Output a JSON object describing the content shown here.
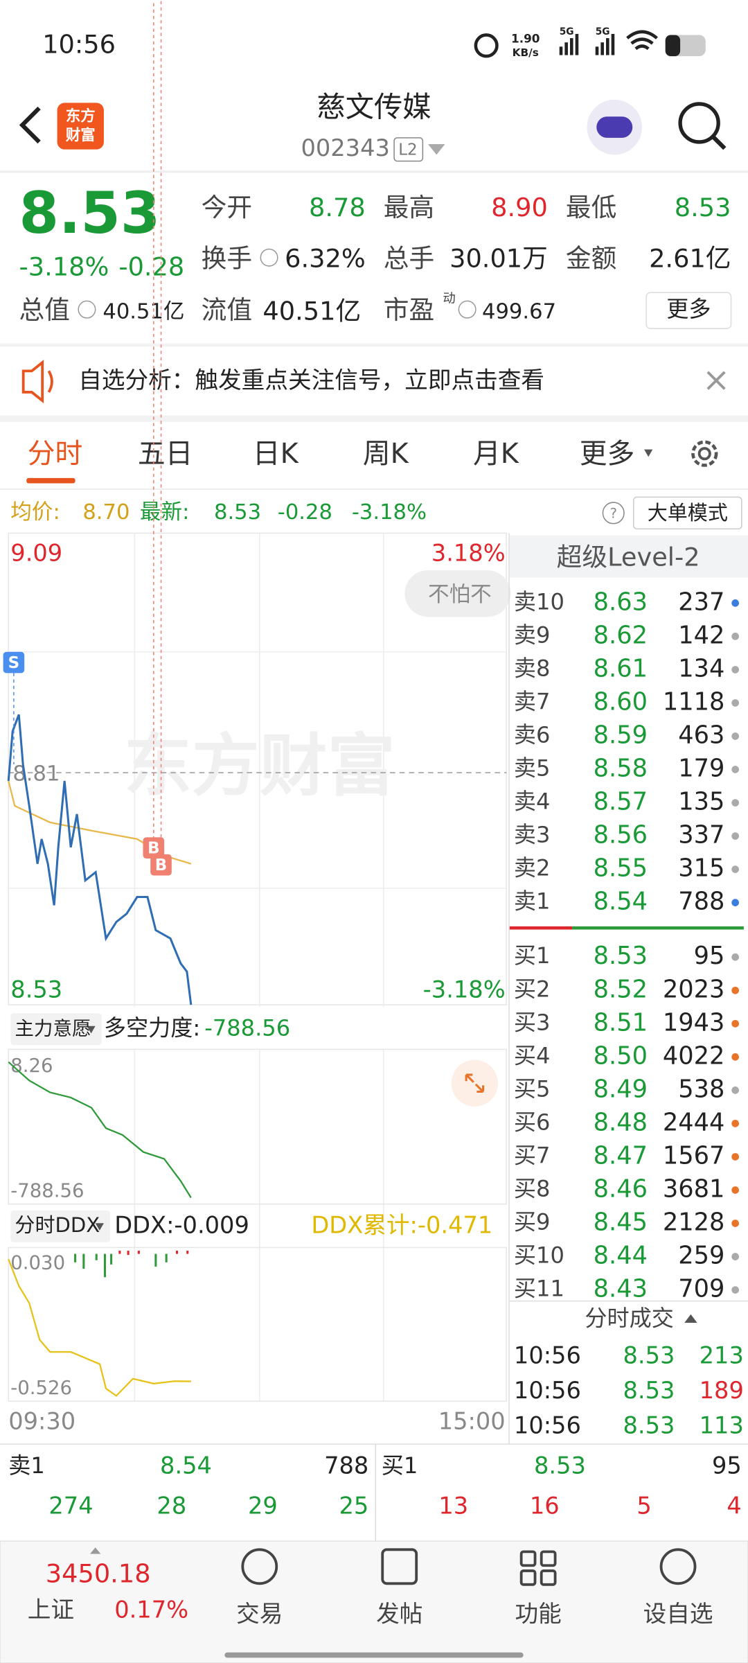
{
  "status": {
    "time": "10:56",
    "speed": "1.90",
    "speed_unit": "KB/s",
    "net1": "5G",
    "net2": "5G"
  },
  "header": {
    "logo_line1": "东方",
    "logo_line2": "财富",
    "name": "慈文传媒",
    "code": "002343",
    "badge": "L2"
  },
  "quote": {
    "price": "8.53",
    "pct": "-3.18%",
    "change": "-0.28",
    "fields": [
      {
        "label": "今开",
        "value": "8.78",
        "color": "#1a9a36"
      },
      {
        "label": "最高",
        "value": "8.90",
        "color": "#e0262d"
      },
      {
        "label": "最低",
        "value": "8.53",
        "color": "#1a9a36"
      },
      {
        "label": "换手",
        "value": "6.32%",
        "color": "#222222"
      },
      {
        "label": "总手",
        "value": "30.01万",
        "color": "#222222"
      },
      {
        "label": "金额",
        "value": "2.61亿",
        "color": "#222222"
      },
      {
        "label": "总值",
        "value": "40.51亿",
        "color": "#222222"
      },
      {
        "label": "流值",
        "value": "40.51亿",
        "color": "#222222"
      },
      {
        "label": "市盈",
        "sup": "动",
        "value": "499.67",
        "color": "#222222"
      }
    ],
    "more": "更多"
  },
  "banner": {
    "text": "自选分析：触发重点关注信号，立即点击查看"
  },
  "tabs": [
    "分时",
    "五日",
    "日K",
    "周K",
    "月K",
    "更多"
  ],
  "info": {
    "avg_label": "均价:",
    "avg": "8.70",
    "last_label": "最新:",
    "last": "8.53",
    "change": "-0.28",
    "pct": "-3.18%",
    "mode": "大单模式"
  },
  "chart": {
    "ylim": [
      8.53,
      9.09
    ],
    "top_pct": "3.18%",
    "bottom_pct": "-3.18%",
    "prev_close": 8.81,
    "xticks": [
      {
        "value": 0,
        "label": "09:30"
      },
      {
        "value": 240,
        "label": "15:00"
      }
    ],
    "watermark": "东方财富",
    "bubble": "不怕不",
    "markers": [
      "S",
      "B",
      "B"
    ],
    "price": {
      "color": "#2f6db5",
      "x": [
        0,
        2,
        5,
        7,
        10,
        14,
        16,
        19,
        22,
        24,
        27,
        30,
        33,
        37,
        42,
        47,
        52,
        57,
        62,
        67,
        71,
        78,
        83,
        86,
        88
      ],
      "values": [
        8.8,
        8.86,
        8.88,
        8.82,
        8.77,
        8.7,
        8.73,
        8.7,
        8.65,
        8.72,
        8.8,
        8.72,
        8.76,
        8.68,
        8.69,
        8.61,
        8.63,
        8.64,
        8.66,
        8.66,
        8.62,
        8.61,
        8.58,
        8.57,
        8.53
      ]
    },
    "avg": {
      "color": "#e8b84a",
      "x": [
        0,
        3,
        20,
        40,
        62,
        75,
        88
      ],
      "values": [
        8.8,
        8.77,
        8.75,
        8.74,
        8.73,
        8.71,
        8.7
      ]
    }
  },
  "ind1": {
    "selector": "主力意愿",
    "label": "多空力度:",
    "value": "-788.56",
    "yticks": [
      8.26,
      -788.56
    ],
    "color": "#2e9a3a",
    "x": [
      0,
      10,
      20,
      30,
      40,
      47,
      55,
      65,
      75,
      83,
      88
    ],
    "values": [
      8.26,
      -100,
      -170,
      -200,
      -260,
      -380,
      -420,
      -520,
      -560,
      -690,
      -788.56
    ]
  },
  "ind2": {
    "selector": "分时DDX",
    "ddx": "DDX:-0.009",
    "ddx_sum": "DDX累计:-0.471",
    "yticks": [
      {
        "value": 0.03,
        "label": "0.030"
      },
      -0.526
    ],
    "color": "#e6c21a",
    "x": [
      0,
      5,
      10,
      15,
      20,
      30,
      44,
      47,
      52,
      60,
      70,
      80,
      88
    ],
    "values": [
      0.03,
      -0.08,
      -0.15,
      -0.3,
      -0.35,
      -0.35,
      -0.4,
      -0.5,
      -0.53,
      -0.46,
      -0.48,
      -0.47,
      -0.471
    ]
  },
  "book": {
    "title": "超级Level-2",
    "sells": [
      {
        "label": "卖10",
        "price": "8.63",
        "volume": "237",
        "dot": "#3b7ddd"
      },
      {
        "label": "卖9",
        "price": "8.62",
        "volume": "142",
        "dot": "#aaaaaa"
      },
      {
        "label": "卖8",
        "price": "8.61",
        "volume": "134",
        "dot": "#aaaaaa"
      },
      {
        "label": "卖7",
        "price": "8.60",
        "volume": "1118",
        "dot": "#aaaaaa"
      },
      {
        "label": "卖6",
        "price": "8.59",
        "volume": "463",
        "dot": "#aaaaaa"
      },
      {
        "label": "卖5",
        "price": "8.58",
        "volume": "179",
        "dot": "#aaaaaa"
      },
      {
        "label": "卖4",
        "price": "8.57",
        "volume": "135",
        "dot": "#aaaaaa"
      },
      {
        "label": "卖3",
        "price": "8.56",
        "volume": "337",
        "dot": "#aaaaaa"
      },
      {
        "label": "卖2",
        "price": "8.55",
        "volume": "315",
        "dot": "#aaaaaa"
      },
      {
        "label": "卖1",
        "price": "8.54",
        "volume": "788",
        "dot": "#3b7ddd"
      }
    ],
    "buys": [
      {
        "label": "买1",
        "price": "8.53",
        "volume": "95",
        "dot": "#aaaaaa"
      },
      {
        "label": "买2",
        "price": "8.52",
        "volume": "2023",
        "dot": "#e8742a"
      },
      {
        "label": "买3",
        "price": "8.51",
        "volume": "1943",
        "dot": "#e8742a"
      },
      {
        "label": "买4",
        "price": "8.50",
        "volume": "4022",
        "dot": "#e8742a"
      },
      {
        "label": "买5",
        "price": "8.49",
        "volume": "538",
        "dot": "#aaaaaa"
      },
      {
        "label": "买6",
        "price": "8.48",
        "volume": "2444",
        "dot": "#e8742a"
      },
      {
        "label": "买7",
        "price": "8.47",
        "volume": "1567",
        "dot": "#e8742a"
      },
      {
        "label": "买8",
        "price": "8.46",
        "volume": "3681",
        "dot": "#e8742a"
      },
      {
        "label": "买9",
        "price": "8.45",
        "volume": "2128",
        "dot": "#e8742a"
      },
      {
        "label": "买10",
        "price": "8.44",
        "volume": "259",
        "dot": "#aaaaaa"
      },
      {
        "label": "买11",
        "price": "8.43",
        "volume": "709",
        "dot": "#aaaaaa"
      }
    ],
    "trades_title": "分时成交",
    "trades": [
      {
        "time": "10:56",
        "price": "8.53",
        "volume": "213",
        "color": "#1a9a36"
      },
      {
        "time": "10:56",
        "price": "8.53",
        "volume": "189",
        "color": "#e0262d"
      },
      {
        "time": "10:56",
        "price": "8.53",
        "volume": "113",
        "color": "#1a9a36"
      }
    ]
  },
  "bottom": {
    "sell_label": "卖1",
    "sell_price": "8.54",
    "sell_volume": "788",
    "buy_label": "买1",
    "buy_price": "8.53",
    "buy_volume": "95",
    "sell_row": [
      "274",
      "28",
      "29",
      "25"
    ],
    "buy_row": [
      "13",
      "16",
      "5",
      "4"
    ]
  },
  "nav": {
    "index_value": "3450.18",
    "index_name": "上证",
    "index_pct": "0.17%",
    "items": [
      "交易",
      "发帖",
      "功能",
      "设自选"
    ]
  }
}
